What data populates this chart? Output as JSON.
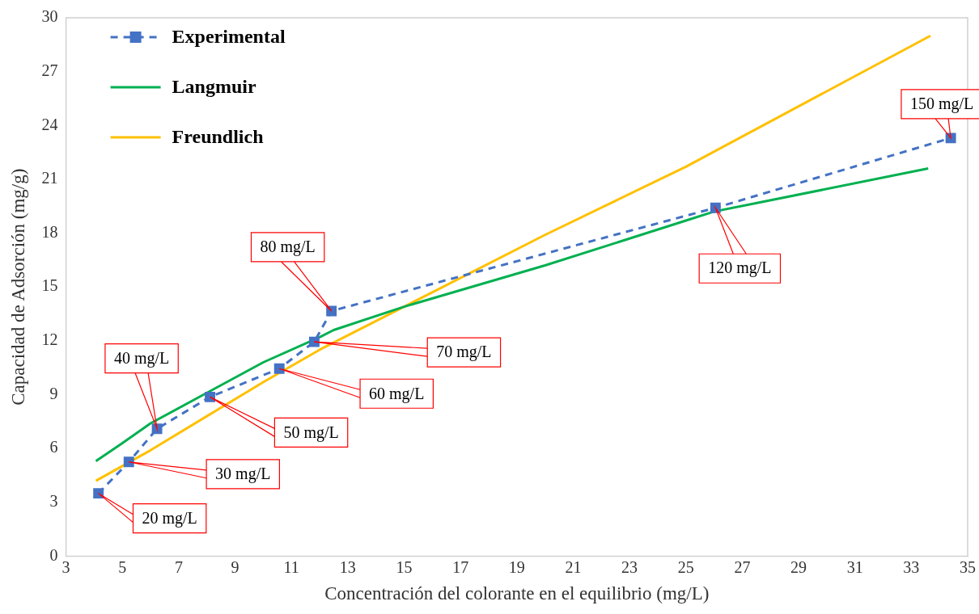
{
  "chart_data": {
    "type": "line",
    "xlabel": "Concentración del colorante en el equilibrio (mg/L)",
    "ylabel": "Capacidad de Adsorción (mg/g)",
    "xlim": [
      3,
      35
    ],
    "xticks": [
      3,
      5,
      7,
      9,
      11,
      13,
      15,
      17,
      19,
      21,
      23,
      25,
      27,
      29,
      31,
      33,
      35
    ],
    "ylim": [
      0,
      30
    ],
    "yticks": [
      0,
      3,
      6,
      9,
      12,
      15,
      18,
      21,
      24,
      27,
      30
    ],
    "grid": false,
    "legend": "top left",
    "series": [
      {
        "name": "Experimental",
        "color": "#4472c4",
        "marker": "square",
        "line_style": "dashed",
        "x": [
          4.15,
          5.23,
          6.23,
          8.11,
          10.57,
          11.81,
          12.42,
          26.05,
          34.4
        ],
        "values": [
          3.5,
          5.25,
          7.1,
          8.87,
          10.45,
          11.94,
          13.66,
          19.41,
          23.3
        ]
      },
      {
        "name": "Langmuir",
        "color": "#00b050",
        "marker": "none",
        "line_style": "solid",
        "x": [
          4.06,
          5,
          6,
          8,
          10,
          12,
          12.5,
          15,
          20,
          25,
          26,
          33.6
        ],
        "values": [
          5.3,
          6.3,
          7.4,
          9.1,
          10.8,
          12.2,
          12.6,
          13.9,
          16.2,
          18.7,
          19.2,
          21.6
        ]
      },
      {
        "name": "Freundlich",
        "color": "#ffc000",
        "marker": "none",
        "line_style": "solid",
        "x": [
          4.06,
          6,
          8,
          10,
          12,
          15,
          20,
          25,
          33.68
        ],
        "values": [
          4.2,
          5.9,
          7.8,
          9.7,
          11.5,
          13.9,
          17.9,
          21.7,
          29.0
        ]
      }
    ],
    "annotations": [
      "20 mg/L",
      "30 mg/L",
      "40 mg/L",
      "50 mg/L",
      "60 mg/L",
      "70 mg/L",
      "80 mg/L",
      "120 mg/L",
      "150 mg/L"
    ]
  }
}
